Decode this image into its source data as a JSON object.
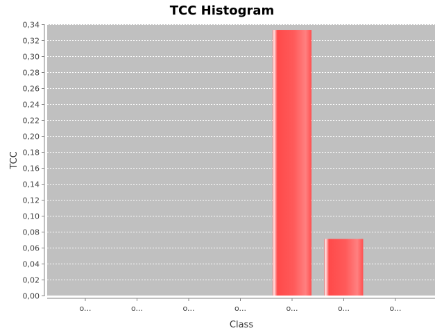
{
  "chart_data": {
    "type": "bar",
    "title": "TCC Histogram",
    "xlabel": "Class",
    "ylabel": "TCC",
    "categories": [
      "o...",
      "o...",
      "o...",
      "o...",
      "o...",
      "o...",
      "o..."
    ],
    "values": [
      0,
      0,
      0,
      0,
      0.333,
      0.071,
      0
    ],
    "ylim": [
      0,
      0.34
    ],
    "yticks": [
      "0,00",
      "0,02",
      "0,04",
      "0,06",
      "0,08",
      "0,10",
      "0,12",
      "0,14",
      "0,16",
      "0,18",
      "0,20",
      "0,22",
      "0,24",
      "0,26",
      "0,28",
      "0,30",
      "0,32",
      "0,34"
    ],
    "grid": true,
    "legend": "none",
    "colors": {
      "plot_background": "#c0c0c0",
      "bar": "#ff5a5a",
      "bar_highlight": "#ffe6e6",
      "gridline": "#ffffff",
      "axis": "#808080"
    }
  }
}
